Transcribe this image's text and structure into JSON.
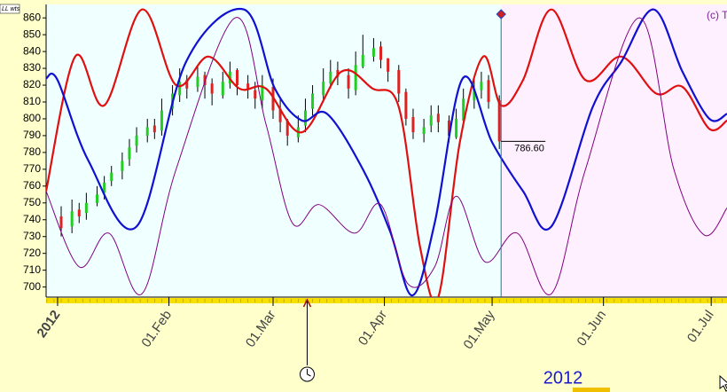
{
  "chart_data": {
    "type": "candlestick",
    "corner_label": "LL wts",
    "copyright": "(c) T",
    "year_label": "2012",
    "ylim": [
      694,
      868
    ],
    "yticks": [
      700,
      710,
      720,
      730,
      740,
      750,
      760,
      770,
      780,
      790,
      800,
      810,
      820,
      830,
      840,
      850,
      860
    ],
    "xlim": [
      -3.2,
      186.4
    ],
    "xticks": [
      {
        "value": 0,
        "label": "2012"
      },
      {
        "value": 31,
        "label": "01.Feb"
      },
      {
        "value": 60,
        "label": "01.Mar"
      },
      {
        "value": 91,
        "label": "01.Apr"
      },
      {
        "value": 121,
        "label": "01.May"
      },
      {
        "value": 152,
        "label": "01.Jun"
      },
      {
        "value": 182,
        "label": "01.Jul"
      }
    ],
    "now_x": 123.5,
    "cursor_x": 69.5,
    "last": {
      "value": 786.6,
      "label": "786.60"
    },
    "up_color": "#22cc22",
    "down_color": "#dd2222",
    "wick_color": "#000000",
    "bars": {
      "x": [
        1,
        4,
        6,
        8,
        11,
        13,
        15,
        18,
        20,
        22,
        25,
        27,
        29,
        32,
        34,
        36,
        39,
        41,
        43,
        46,
        48,
        50,
        53,
        55,
        57,
        60,
        62,
        64,
        67,
        69,
        71,
        74,
        76,
        78,
        81,
        83,
        85,
        88,
        90,
        92,
        95,
        97,
        99,
        102,
        104,
        106,
        109,
        111,
        113,
        116,
        118,
        120,
        123
      ],
      "open": [
        742,
        736,
        746,
        744,
        750,
        756,
        763,
        769,
        776,
        784,
        790,
        796,
        793,
        806,
        814,
        823,
        819,
        826,
        821,
        814,
        821,
        829,
        821,
        817,
        811,
        819,
        806,
        799,
        789,
        796,
        806,
        814,
        821,
        829,
        826,
        817,
        831,
        837,
        843,
        836,
        829,
        816,
        801,
        791,
        796,
        803,
        799,
        789,
        799,
        811,
        817,
        823,
        811
      ],
      "close": [
        735,
        745,
        742,
        750,
        755,
        762,
        768,
        775,
        783,
        790,
        795,
        792,
        805,
        815,
        822,
        818,
        825,
        820,
        815,
        822,
        828,
        820,
        818,
        812,
        820,
        805,
        798,
        790,
        795,
        805,
        815,
        822,
        828,
        825,
        818,
        832,
        838,
        842,
        835,
        828,
        815,
        800,
        792,
        795,
        802,
        798,
        790,
        800,
        812,
        818,
        822,
        810,
        786.6
      ],
      "high": [
        748,
        752,
        750,
        756,
        760,
        766,
        772,
        780,
        788,
        795,
        800,
        800,
        812,
        820,
        830,
        826,
        832,
        828,
        824,
        828,
        834,
        830,
        826,
        822,
        826,
        824,
        812,
        800,
        802,
        812,
        820,
        830,
        835,
        834,
        830,
        840,
        850,
        848,
        846,
        836,
        832,
        818,
        806,
        800,
        808,
        808,
        802,
        806,
        818,
        824,
        828,
        826,
        814
      ],
      "low": [
        730,
        732,
        738,
        740,
        748,
        752,
        760,
        764,
        772,
        780,
        786,
        788,
        790,
        802,
        810,
        812,
        816,
        812,
        808,
        812,
        818,
        814,
        812,
        806,
        806,
        800,
        792,
        784,
        786,
        792,
        802,
        810,
        818,
        820,
        812,
        814,
        830,
        834,
        830,
        822,
        810,
        796,
        788,
        786,
        792,
        792,
        786,
        788,
        796,
        806,
        812,
        806,
        782
      ]
    },
    "series": [
      {
        "name": "red",
        "color": "#e01010",
        "x": [
          -3.2,
          4.9,
          13,
          23.5,
          33,
          42,
          50.6,
          58,
          68,
          79,
          87.7,
          95,
          101,
          106,
          112,
          118.5,
          123.5,
          129.6,
          137.5,
          147,
          157,
          166.7,
          174,
          181.5,
          186.4
        ],
        "values": [
          757,
          837,
          808,
          865,
          820,
          837,
          818,
          818,
          792,
          828,
          818,
          807,
          723,
          694,
          786,
          837,
          808,
          823,
          865,
          823,
          837,
          815,
          819,
          794,
          799
        ]
      },
      {
        "name": "blue",
        "color": "#1010d0",
        "x": [
          -3.2,
          0,
          8.6,
          22,
          35.8,
          51.9,
          60.5,
          68,
          75,
          85,
          92.6,
          98.8,
          105,
          112.8,
          121,
          129.6,
          137.5,
          149,
          157,
          166,
          174,
          181.5,
          186.4
        ],
        "values": [
          824,
          823,
          775,
          736,
          834,
          865,
          818,
          799,
          803,
          770,
          733,
          695,
          738,
          824,
          786,
          757,
          736,
          807,
          834,
          865,
          828,
          800,
          803
        ]
      },
      {
        "name": "purple",
        "color": "#800080",
        "x": [
          -3.2,
          6,
          14.3,
          23.5,
          33,
          49.4,
          58,
          65.4,
          72.8,
          82.7,
          90,
          97.5,
          105,
          111,
          119,
          128,
          137.5,
          147,
          162,
          171.6,
          180,
          186.4
        ],
        "values": [
          757,
          712,
          732,
          696,
          770,
          860,
          797,
          738,
          749,
          732,
          749,
          702,
          712,
          754,
          715,
          732,
          696,
          770,
          860,
          770,
          731,
          747
        ]
      }
    ]
  }
}
